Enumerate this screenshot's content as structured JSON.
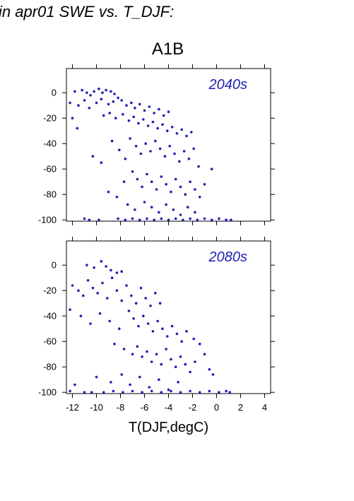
{
  "page_title": "in apr01 SWE vs. T_DJF:",
  "scenario_title": "A1B",
  "colors": {
    "points": "#1f1fb4",
    "axes": "#000000"
  },
  "chart_data": [
    {
      "type": "scatter",
      "label": "2040s",
      "xlabel": "",
      "ylabel": "",
      "xlim": [
        -12.5,
        4.5
      ],
      "ylim": [
        -101,
        19
      ],
      "yticks": [
        0,
        -20,
        -40,
        -60,
        -80,
        -100
      ],
      "xticks": [
        -12,
        -10,
        -8,
        -6,
        -4,
        -2,
        0,
        2,
        4
      ],
      "x_tick_labels_shown": false,
      "grid": false,
      "series": [
        {
          "points": [
            [
              -11.8,
              1
            ],
            [
              -11.2,
              2
            ],
            [
              -10.8,
              0
            ],
            [
              -10.5,
              -2
            ],
            [
              -10.2,
              1
            ],
            [
              -9.8,
              3
            ],
            [
              -9.5,
              0
            ],
            [
              -9.2,
              2
            ],
            [
              -8.8,
              1
            ],
            [
              -8.5,
              -1
            ],
            [
              -12.2,
              -8
            ],
            [
              -11.5,
              -10
            ],
            [
              -11.0,
              -6
            ],
            [
              -10.6,
              -12
            ],
            [
              -10.0,
              -8
            ],
            [
              -9.6,
              -5
            ],
            [
              -9.0,
              -9
            ],
            [
              -8.6,
              -7
            ],
            [
              -8.2,
              -4
            ],
            [
              -7.9,
              -6
            ],
            [
              -7.5,
              -10
            ],
            [
              -7.1,
              -8
            ],
            [
              -6.8,
              -12
            ],
            [
              -6.4,
              -9
            ],
            [
              -6.0,
              -14
            ],
            [
              -5.6,
              -11
            ],
            [
              -5.2,
              -16
            ],
            [
              -4.8,
              -13
            ],
            [
              -4.4,
              -18
            ],
            [
              -4.0,
              -15
            ],
            [
              -12.0,
              -20
            ],
            [
              -11.6,
              -28
            ],
            [
              -9.4,
              -18
            ],
            [
              -8.9,
              -16
            ],
            [
              -8.4,
              -20
            ],
            [
              -7.8,
              -17
            ],
            [
              -7.3,
              -22
            ],
            [
              -6.9,
              -19
            ],
            [
              -6.5,
              -24
            ],
            [
              -6.1,
              -21
            ],
            [
              -5.7,
              -26
            ],
            [
              -5.3,
              -23
            ],
            [
              -4.9,
              -28
            ],
            [
              -4.5,
              -25
            ],
            [
              -4.1,
              -30
            ],
            [
              -3.7,
              -27
            ],
            [
              -3.3,
              -32
            ],
            [
              -2.9,
              -29
            ],
            [
              -2.5,
              -34
            ],
            [
              -2.1,
              -31
            ],
            [
              -10.3,
              -50
            ],
            [
              -9.6,
              -55
            ],
            [
              -8.7,
              -38
            ],
            [
              -8.1,
              -45
            ],
            [
              -7.6,
              -52
            ],
            [
              -7.2,
              -36
            ],
            [
              -6.7,
              -42
            ],
            [
              -6.3,
              -48
            ],
            [
              -5.9,
              -40
            ],
            [
              -5.5,
              -46
            ],
            [
              -5.1,
              -38
            ],
            [
              -4.7,
              -44
            ],
            [
              -4.3,
              -50
            ],
            [
              -3.9,
              -42
            ],
            [
              -3.5,
              -48
            ],
            [
              -3.1,
              -54
            ],
            [
              -2.7,
              -46
            ],
            [
              -2.3,
              -52
            ],
            [
              -1.9,
              -44
            ],
            [
              -1.5,
              -58
            ],
            [
              -9.0,
              -78
            ],
            [
              -8.3,
              -82
            ],
            [
              -7.7,
              -70
            ],
            [
              -7.0,
              -62
            ],
            [
              -6.6,
              -68
            ],
            [
              -6.2,
              -74
            ],
            [
              -5.8,
              -64
            ],
            [
              -5.4,
              -70
            ],
            [
              -5.0,
              -76
            ],
            [
              -4.6,
              -66
            ],
            [
              -4.2,
              -72
            ],
            [
              -3.8,
              -78
            ],
            [
              -3.4,
              -68
            ],
            [
              -3.0,
              -74
            ],
            [
              -2.6,
              -80
            ],
            [
              -2.2,
              -70
            ],
            [
              -1.8,
              -76
            ],
            [
              -1.4,
              -82
            ],
            [
              -1.0,
              -72
            ],
            [
              -0.4,
              -60
            ],
            [
              -7.4,
              -88
            ],
            [
              -6.8,
              -92
            ],
            [
              -6.0,
              -86
            ],
            [
              -5.4,
              -90
            ],
            [
              -4.8,
              -94
            ],
            [
              -4.2,
              -88
            ],
            [
              -3.6,
              -92
            ],
            [
              -3.0,
              -96
            ],
            [
              -2.4,
              -90
            ],
            [
              -1.8,
              -94
            ],
            [
              -8.2,
              -99
            ],
            [
              -7.6,
              -100
            ],
            [
              -7.0,
              -99
            ],
            [
              -6.4,
              -100
            ],
            [
              -5.8,
              -99
            ],
            [
              -5.2,
              -100
            ],
            [
              -4.6,
              -99
            ],
            [
              -4.0,
              -100
            ],
            [
              -3.4,
              -99
            ],
            [
              -2.8,
              -100
            ],
            [
              -2.2,
              -99
            ],
            [
              -1.6,
              -100
            ],
            [
              -1.0,
              -99
            ],
            [
              -0.4,
              -100
            ],
            [
              0.2,
              -99
            ],
            [
              0.8,
              -100
            ],
            [
              1.2,
              -100
            ],
            [
              -9.8,
              -100
            ],
            [
              -10.6,
              -100
            ],
            [
              -11.0,
              -99
            ]
          ]
        }
      ]
    },
    {
      "type": "scatter",
      "label": "2080s",
      "xlabel": "T(DJF,degC)",
      "ylabel": "",
      "xlim": [
        -12.5,
        4.5
      ],
      "ylim": [
        -101,
        19
      ],
      "yticks": [
        0,
        -20,
        -40,
        -60,
        -80,
        -100
      ],
      "xticks": [
        -12,
        -10,
        -8,
        -6,
        -4,
        -2,
        0,
        2,
        4
      ],
      "xtick_labels": [
        "-12",
        "-10",
        "-8",
        "-6",
        "-4",
        "-2",
        "0",
        "2",
        "4"
      ],
      "x_tick_labels_shown": true,
      "grid": false,
      "series": [
        {
          "points": [
            [
              -10.8,
              0
            ],
            [
              -10.2,
              -2
            ],
            [
              -9.6,
              3
            ],
            [
              -9.2,
              -1
            ],
            [
              -8.8,
              -4
            ],
            [
              -8.3,
              -6
            ],
            [
              -7.9,
              -5
            ],
            [
              -12.0,
              -16
            ],
            [
              -11.5,
              -20
            ],
            [
              -11.1,
              -24
            ],
            [
              -10.7,
              -12
            ],
            [
              -10.3,
              -18
            ],
            [
              -9.9,
              -22
            ],
            [
              -9.5,
              -14
            ],
            [
              -9.1,
              -26
            ],
            [
              -8.7,
              -10
            ],
            [
              -8.3,
              -20
            ],
            [
              -7.9,
              -28
            ],
            [
              -7.5,
              -16
            ],
            [
              -7.1,
              -24
            ],
            [
              -6.7,
              -30
            ],
            [
              -6.3,
              -18
            ],
            [
              -5.9,
              -26
            ],
            [
              -5.5,
              -32
            ],
            [
              -5.1,
              -22
            ],
            [
              -4.7,
              -30
            ],
            [
              -12.2,
              -35
            ],
            [
              -11.3,
              -40
            ],
            [
              -10.5,
              -46
            ],
            [
              -9.7,
              -38
            ],
            [
              -8.9,
              -44
            ],
            [
              -8.1,
              -50
            ],
            [
              -7.3,
              -36
            ],
            [
              -6.9,
              -42
            ],
            [
              -6.5,
              -48
            ],
            [
              -6.1,
              -40
            ],
            [
              -5.7,
              -46
            ],
            [
              -5.3,
              -52
            ],
            [
              -4.9,
              -44
            ],
            [
              -4.5,
              -50
            ],
            [
              -4.1,
              -56
            ],
            [
              -3.7,
              -48
            ],
            [
              -3.3,
              -54
            ],
            [
              -2.9,
              -60
            ],
            [
              -2.5,
              -52
            ],
            [
              -1.9,
              -58
            ],
            [
              -8.5,
              -62
            ],
            [
              -7.7,
              -66
            ],
            [
              -7.0,
              -70
            ],
            [
              -6.6,
              -64
            ],
            [
              -6.2,
              -72
            ],
            [
              -5.8,
              -68
            ],
            [
              -5.4,
              -76
            ],
            [
              -5.0,
              -70
            ],
            [
              -4.6,
              -78
            ],
            [
              -4.2,
              -66
            ],
            [
              -3.8,
              -74
            ],
            [
              -3.4,
              -80
            ],
            [
              -3.0,
              -72
            ],
            [
              -2.6,
              -78
            ],
            [
              -2.2,
              -84
            ],
            [
              -1.8,
              -76
            ],
            [
              -1.4,
              -62
            ],
            [
              -1.0,
              -70
            ],
            [
              -0.6,
              -82
            ],
            [
              -0.3,
              -86
            ],
            [
              -11.8,
              -94
            ],
            [
              -10.0,
              -88
            ],
            [
              -8.8,
              -92
            ],
            [
              -7.9,
              -86
            ],
            [
              -7.2,
              -94
            ],
            [
              -6.4,
              -88
            ],
            [
              -5.6,
              -96
            ],
            [
              -4.8,
              -90
            ],
            [
              -4.0,
              -98
            ],
            [
              -3.2,
              -92
            ],
            [
              -9.4,
              -100
            ],
            [
              -8.6,
              -99
            ],
            [
              -7.8,
              -100
            ],
            [
              -7.0,
              -99
            ],
            [
              -6.2,
              -100
            ],
            [
              -5.4,
              -99
            ],
            [
              -4.6,
              -100
            ],
            [
              -3.8,
              -99
            ],
            [
              -3.0,
              -100
            ],
            [
              -2.2,
              -99
            ],
            [
              -1.4,
              -100
            ],
            [
              -0.6,
              -99
            ],
            [
              0.2,
              -100
            ],
            [
              0.8,
              -99
            ],
            [
              1.1,
              -100
            ],
            [
              -10.4,
              -100
            ],
            [
              -11.0,
              -100
            ],
            [
              -12.2,
              -99
            ]
          ]
        }
      ]
    }
  ]
}
